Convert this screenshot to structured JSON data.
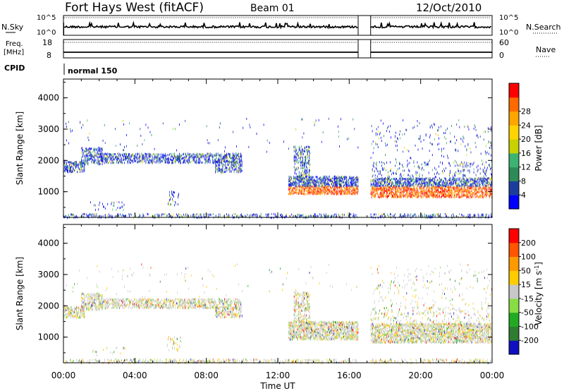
{
  "chart_data": {
    "type": "heatmap",
    "header": {
      "title": "Fort Hays West (fitACF)",
      "beam": "Beam 01",
      "date": "12/Oct/2010"
    },
    "top_panels": {
      "nsky_label": "N.Sky",
      "nsky_ticks": [
        "10^5",
        "10^0"
      ],
      "nsearch_label": "N.Search",
      "nsearch_ticks": [
        "10^5",
        "10^0"
      ],
      "freq_label": "Freq.",
      "freq_unit": "[MHz]",
      "freq_ticks": [
        "18",
        "8"
      ],
      "nave_label": "Nave",
      "nave_ticks": [
        "60",
        "0"
      ],
      "cpid_label": "CPID",
      "cpid_value": "normal 150"
    },
    "x_axis": {
      "label": "Time UT",
      "range_hours": [
        0,
        24
      ],
      "ticks": [
        "00:00",
        "04:00",
        "08:00",
        "12:00",
        "16:00",
        "20:00",
        "00:00"
      ]
    },
    "y_axis": {
      "label": "Slant Range [km]",
      "range_km": [
        180,
        4600
      ],
      "ticks": [
        "1000",
        "2000",
        "3000",
        "4000"
      ]
    },
    "data_gap_hours": [
      16.5,
      17.2
    ],
    "power_panel": {
      "colorbar_label": "Power [dB]",
      "colorbar_ticks": [
        "4",
        "8",
        "12",
        "16",
        "20",
        "24",
        "28"
      ],
      "colors": [
        "#0000ff",
        "#1c3d9e",
        "#2e8b57",
        "#3cb371",
        "#c8d200",
        "#ffd400",
        "#ffa500",
        "#ff6a00",
        "#ff0000"
      ]
    },
    "velocity_panel": {
      "colorbar_label": "Velocity [m s",
      "colorbar_unit_exp": "-1",
      "colorbar_ticks": [
        "200",
        "100",
        "50",
        "15",
        "-15",
        "-50",
        "-100",
        "-200"
      ],
      "colors": [
        "#1010c0",
        "#2e7d32",
        "#22aa22",
        "#88dd44",
        "#c8c8c8",
        "#ffcc00",
        "#ff9900",
        "#ff5500",
        "#ff0000"
      ]
    },
    "scatter_regions": [
      {
        "t": [
          0.0,
          1.2
        ],
        "r": [
          1650,
          2000
        ],
        "density": 0.55
      },
      {
        "t": [
          1.0,
          2.2
        ],
        "r": [
          1900,
          2450
        ],
        "density": 0.5
      },
      {
        "t": [
          2.0,
          10.0
        ],
        "r": [
          1950,
          2250
        ],
        "density": 0.5
      },
      {
        "t": [
          8.5,
          10.0
        ],
        "r": [
          1650,
          2000
        ],
        "density": 0.45
      },
      {
        "t": [
          12.6,
          16.5
        ],
        "r": [
          950,
          1550
        ],
        "density": 0.65
      },
      {
        "t": [
          12.9,
          13.8
        ],
        "r": [
          1500,
          2500
        ],
        "density": 0.35
      },
      {
        "t": [
          17.2,
          24.0
        ],
        "r": [
          850,
          1500
        ],
        "density": 0.6
      },
      {
        "t": [
          17.2,
          24.0
        ],
        "r": [
          1500,
          2000
        ],
        "density": 0.12
      },
      {
        "t": [
          5.8,
          6.6
        ],
        "r": [
          600,
          1050
        ],
        "density": 0.15
      },
      {
        "t": [
          1.5,
          3.5
        ],
        "r": [
          450,
          700
        ],
        "density": 0.08
      },
      {
        "t": [
          0.0,
          24.0
        ],
        "r": [
          200,
          330
        ],
        "density": 0.28
      },
      {
        "t": [
          0.0,
          24.0
        ],
        "r": [
          2300,
          3400
        ],
        "density": 0.01
      },
      {
        "t": [
          17.2,
          24.0
        ],
        "r": [
          2000,
          3200
        ],
        "density": 0.03
      }
    ]
  }
}
